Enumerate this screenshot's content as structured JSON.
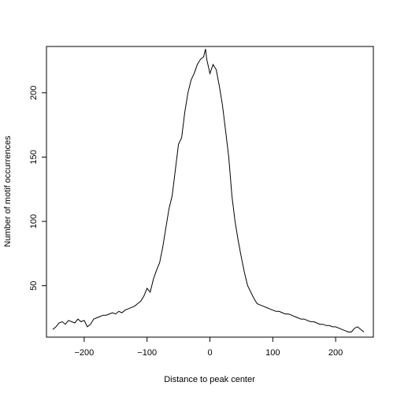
{
  "chart_data": {
    "type": "line",
    "title": "",
    "xlabel": "Distance to peak center",
    "ylabel": "Number of motif occurrences",
    "xlim": [
      -260,
      260
    ],
    "ylim": [
      10,
      236
    ],
    "grid": false,
    "x_ticks": [
      -200,
      -100,
      0,
      100,
      200
    ],
    "x_tick_labels": [
      "−200",
      "−100",
      "0",
      "100",
      "200"
    ],
    "y_ticks": [
      50,
      100,
      150,
      200
    ],
    "y_tick_labels": [
      "50",
      "100",
      "150",
      "200"
    ],
    "series": [
      {
        "x": [
          -250,
          -245,
          -240,
          -235,
          -230,
          -225,
          -220,
          -215,
          -210,
          -205,
          -200,
          -195,
          -190,
          -185,
          -180,
          -175,
          -170,
          -165,
          -160,
          -155,
          -150,
          -145,
          -140,
          -135,
          -130,
          -125,
          -120,
          -115,
          -110,
          -105,
          -100,
          -95,
          -90,
          -85,
          -80,
          -75,
          -70,
          -65,
          -60,
          -55,
          -50,
          -45,
          -40,
          -35,
          -30,
          -25,
          -20,
          -15,
          -10,
          -7,
          -5,
          0,
          5,
          10,
          15,
          20,
          25,
          30,
          35,
          40,
          45,
          50,
          55,
          60,
          65,
          70,
          75,
          80,
          85,
          90,
          95,
          100,
          105,
          110,
          115,
          120,
          125,
          130,
          135,
          140,
          145,
          150,
          155,
          160,
          165,
          170,
          175,
          180,
          185,
          190,
          195,
          200,
          205,
          210,
          215,
          220,
          225,
          230,
          235,
          240,
          245
        ],
        "y": [
          16,
          18,
          21,
          22,
          20,
          23,
          22,
          21,
          24,
          22,
          23,
          18,
          20,
          24,
          25,
          26,
          27,
          27,
          28,
          29,
          28,
          30,
          29,
          31,
          32,
          33,
          34,
          36,
          38,
          42,
          48,
          45,
          55,
          62,
          68,
          80,
          95,
          110,
          120,
          140,
          160,
          165,
          185,
          200,
          210,
          215,
          222,
          226,
          228,
          234,
          226,
          215,
          222,
          218,
          205,
          190,
          170,
          150,
          120,
          100,
          85,
          72,
          60,
          50,
          45,
          40,
          36,
          35,
          34,
          33,
          32,
          31,
          30,
          30,
          29,
          28,
          28,
          27,
          26,
          25,
          24,
          24,
          23,
          22,
          22,
          21,
          20,
          20,
          19,
          19,
          18,
          18,
          17,
          16,
          15,
          14,
          14,
          17,
          18,
          16,
          14
        ]
      }
    ]
  }
}
